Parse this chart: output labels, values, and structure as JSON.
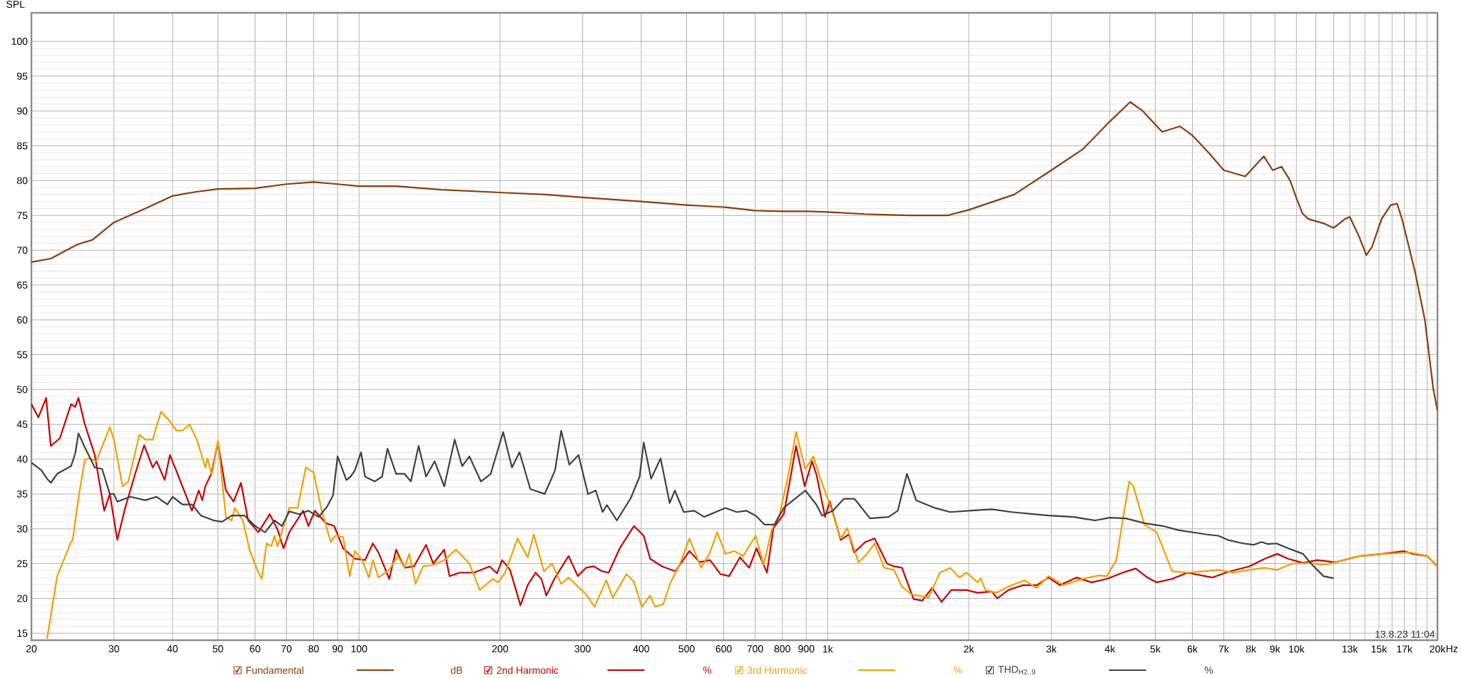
{
  "chart_data": {
    "type": "line",
    "ylabel": "SPL",
    "xlabel": "Hz",
    "annotations": [
      "13.8.23 11:04",
      "dB",
      "%",
      "%",
      "%"
    ],
    "xlim": [
      20,
      20000
    ],
    "ylim": [
      14,
      104.1
    ],
    "xticks": [
      20,
      30,
      40,
      50,
      60,
      70,
      80,
      90,
      100,
      200,
      300,
      400,
      500,
      600,
      700,
      800,
      900,
      {
        "value": 1000,
        "label": "1k"
      },
      {
        "value": 2000,
        "label": "2k"
      },
      {
        "value": 3000,
        "label": "3k"
      },
      {
        "value": 4000,
        "label": "4k"
      },
      {
        "value": 5000,
        "label": "5k"
      },
      {
        "value": 6000,
        "label": "6k"
      },
      {
        "value": 7000,
        "label": "7k"
      },
      {
        "value": 8000,
        "label": "8k"
      },
      {
        "value": 9000,
        "label": "9k"
      },
      {
        "value": 10000,
        "label": "10k"
      },
      {
        "value": 11000,
        "label": null
      },
      {
        "value": 12000,
        "label": null
      },
      {
        "value": 13000,
        "label": "13k"
      },
      {
        "value": 14000,
        "label": null
      },
      {
        "value": 15000,
        "label": "15k"
      },
      {
        "value": 16000,
        "label": null
      },
      {
        "value": 17000,
        "label": "17k"
      },
      {
        "value": 18000,
        "label": null
      },
      {
        "value": 19000,
        "label": null
      },
      {
        "value": 20000,
        "label": "20k"
      }
    ],
    "yticks": [
      15,
      20,
      25,
      30,
      35,
      40,
      45,
      50,
      55,
      60,
      65,
      70,
      75,
      80,
      85,
      90,
      95,
      100
    ],
    "grid": true,
    "log": "x",
    "legend": "bottom",
    "marker": "none",
    "line_style": "solid",
    "series": [
      {
        "name": "Fundamental",
        "color": "#8c3c0a",
        "x": [
          20,
          22,
          25,
          27,
          30,
          35,
          40,
          45,
          50,
          60,
          70,
          80,
          90,
          100,
          120,
          150,
          200,
          250,
          300,
          400,
          500,
          600,
          700,
          800,
          900,
          1000,
          1200,
          1500,
          1800,
          2000,
          2500,
          3000,
          3500,
          4000,
          4420,
          4700,
          5170,
          5640,
          6000,
          6500,
          7000,
          7780,
          8520,
          8900,
          9300,
          9700,
          10000,
          10300,
          10600,
          11500,
          12000,
          12700,
          13000,
          13600,
          14100,
          14500,
          15200,
          15900,
          16400,
          16800,
          17900,
          18800,
          19600,
          20000
        ],
        "values": [
          68.3,
          68.8,
          70.8,
          71.5,
          74,
          76,
          77.8,
          78.4,
          78.8,
          78.9,
          79.5,
          79.8,
          79.5,
          79.2,
          79.2,
          78.7,
          78.3,
          78,
          77.6,
          77,
          76.5,
          76.2,
          75.7,
          75.6,
          75.6,
          75.5,
          75.2,
          75,
          75,
          75.8,
          78,
          81.5,
          84.5,
          88.5,
          91.3,
          90,
          87,
          87.8,
          86.5,
          84,
          81.5,
          80.6,
          83.5,
          81.5,
          82,
          80,
          77.5,
          75.3,
          74.5,
          73.8,
          73.2,
          74.5,
          74.8,
          72,
          69.3,
          70.5,
          74.5,
          76.5,
          76.7,
          74.5,
          67,
          60,
          50,
          47
        ]
      },
      {
        "name": "2nd Harmonic",
        "color": "#c80000",
        "x": [
          20,
          20.7,
          21.5,
          22,
          23,
          24.3,
          24.8,
          25.2,
          26,
          27.3,
          28.6,
          29.4,
          30.5,
          31.7,
          33.3,
          34.8,
          36.3,
          37,
          38.5,
          39.5,
          41,
          42.5,
          44,
          45.5,
          46.3,
          47,
          48.4,
          50,
          52,
          54,
          56,
          58,
          61,
          64.5,
          67,
          69,
          71,
          76,
          78,
          80.5,
          85,
          88.5,
          92.5,
          98,
          103,
          107,
          110,
          116,
          120,
          125,
          131,
          139,
          144,
          152,
          156,
          164,
          176,
          190,
          197,
          202,
          210,
          221,
          229,
          238,
          245,
          251,
          261,
          280,
          293,
          305,
          317,
          330,
          341,
          360,
          386,
          405,
          418,
          443,
          473,
          507,
          533,
          561,
          590,
          616,
          650,
          680,
          705,
          742,
          766,
          806,
          832,
          856,
          893,
          926,
          947,
          987,
          1010,
          1066,
          1110,
          1139,
          1203,
          1260,
          1338,
          1385,
          1440,
          1525,
          1592,
          1670,
          1750,
          1835,
          1979,
          2090,
          2240,
          2300,
          2430,
          2610,
          2790,
          2960,
          3130,
          3400,
          3660,
          3940,
          4260,
          4540,
          4810,
          5035,
          5430,
          5858,
          6620,
          7140,
          7934,
          8560,
          9100,
          9600,
          10330,
          11080,
          12100,
          13700,
          15240,
          16940,
          17700,
          19000,
          20000
        ],
        "values": [
          47.9,
          46.0,
          48.8,
          41.9,
          43.0,
          47.9,
          47.5,
          48.8,
          45.0,
          40.6,
          32.6,
          35.0,
          28.4,
          33.0,
          37.9,
          42.0,
          38.8,
          39.7,
          37.0,
          40.6,
          37.9,
          35.2,
          32.6,
          35.5,
          34.1,
          36.1,
          37.9,
          42.4,
          35.5,
          33.9,
          36.6,
          31.2,
          29.5,
          32.1,
          29.9,
          27.2,
          29.5,
          32.6,
          30.4,
          32.6,
          30.8,
          30.4,
          27.2,
          25.7,
          25.5,
          27.9,
          26.6,
          22.8,
          27.0,
          24.4,
          24.6,
          27.7,
          25.0,
          27.0,
          23.2,
          23.7,
          23.7,
          24.6,
          23.6,
          25.5,
          24.1,
          19.0,
          21.9,
          23.7,
          22.8,
          20.4,
          22.8,
          26.1,
          23.2,
          24.4,
          24.6,
          23.9,
          23.7,
          27.2,
          30.4,
          29.0,
          25.7,
          24.6,
          23.9,
          26.8,
          25.2,
          25.5,
          23.5,
          23.2,
          25.9,
          24.4,
          27.2,
          23.7,
          30.1,
          32.1,
          37.2,
          41.9,
          36.1,
          39.7,
          37.7,
          31.7,
          33.9,
          28.4,
          29.2,
          26.6,
          28.1,
          28.6,
          25.0,
          24.6,
          24.4,
          19.9,
          19.7,
          21.5,
          19.5,
          21.2,
          21.2,
          20.8,
          21.0,
          20.0,
          21.2,
          21.9,
          21.9,
          23.0,
          21.9,
          23.0,
          22.3,
          22.8,
          23.7,
          24.3,
          23.0,
          22.3,
          22.8,
          23.7,
          23.0,
          23.8,
          24.6,
          25.7,
          26.4,
          25.7,
          25.1,
          25.5,
          25.2,
          26.1,
          26.4,
          26.8,
          26.4,
          26.1,
          24.6
        ]
      },
      {
        "name": "3rd Harmonic",
        "color": "#f0a000",
        "x": [
          21.6,
          22.7,
          24.3,
          24.5,
          25.2,
          26,
          26.6,
          27.5,
          29.4,
          30,
          31.3,
          32.2,
          34,
          35,
          36.3,
          37.8,
          39.2,
          40.8,
          42,
          43.5,
          45.2,
          47,
          47.5,
          48.5,
          50,
          52,
          53.5,
          54.3,
          56.5,
          58.5,
          61,
          62,
          63.5,
          65,
          66,
          67,
          71,
          74,
          77,
          80,
          83,
          87,
          89,
          92.5,
          95.5,
          98,
          101.5,
          105,
          107,
          110,
          116,
          121,
          125,
          128,
          132,
          137,
          144,
          152,
          161,
          167,
          172,
          181,
          193,
          198,
          205,
          218,
          229,
          236,
          248,
          258,
          270,
          280,
          293,
          305,
          318,
          337,
          348,
          372,
          386,
          401,
          418,
          428,
          446,
          463,
          484,
          507,
          537,
          561,
          581,
          605,
          632,
          660,
          702,
          730,
          760,
          790,
          825,
          856,
          896,
          932,
          965,
          1010,
          1066,
          1100,
          1163,
          1203,
          1260,
          1320,
          1385,
          1440,
          1509,
          1641,
          1736,
          1826,
          1908,
          1979,
          2090,
          2120,
          2170,
          2290,
          2430,
          2630,
          2790,
          2960,
          3190,
          3500,
          3790,
          3940,
          4130,
          4260,
          4400,
          4490,
          4740,
          5035,
          5430,
          5858,
          6317,
          6816,
          7354,
          7934,
          8560,
          9100,
          9800,
          10745,
          11420,
          12100,
          13700,
          15450,
          17450,
          19000,
          20000
        ],
        "values": [
          14.2,
          23.2,
          28.1,
          28.4,
          34.4,
          39.9,
          40.1,
          39.7,
          44.6,
          42.8,
          36.1,
          36.8,
          43.5,
          42.8,
          42.8,
          46.8,
          45.7,
          44.1,
          44.1,
          45.0,
          42.6,
          38.8,
          40.1,
          37.7,
          42.6,
          31.7,
          31.2,
          33.0,
          31.2,
          26.8,
          23.7,
          22.8,
          27.9,
          27.5,
          29.0,
          27.5,
          33.0,
          33.0,
          38.8,
          38.1,
          33.0,
          28.1,
          29.0,
          28.8,
          23.2,
          26.8,
          25.5,
          23.0,
          25.5,
          23.0,
          24.1,
          26.1,
          24.4,
          26.4,
          22.1,
          24.6,
          24.8,
          25.5,
          27.0,
          25.9,
          25.0,
          21.2,
          22.8,
          22.3,
          23.7,
          28.6,
          25.9,
          29.2,
          23.9,
          25.0,
          22.1,
          23.0,
          21.7,
          20.6,
          18.8,
          22.6,
          20.1,
          23.5,
          22.4,
          18.8,
          20.4,
          18.8,
          19.2,
          22.4,
          25.0,
          28.6,
          24.4,
          26.6,
          29.5,
          26.4,
          26.8,
          26.1,
          29.0,
          24.8,
          29.9,
          32.1,
          37.9,
          43.9,
          38.6,
          40.4,
          37.2,
          33.5,
          28.6,
          30.1,
          25.2,
          26.1,
          27.9,
          24.4,
          24.1,
          21.7,
          20.6,
          20.1,
          23.7,
          24.4,
          23.0,
          23.7,
          22.3,
          22.9,
          21.2,
          20.8,
          21.7,
          22.6,
          21.5,
          23.2,
          21.9,
          22.8,
          23.3,
          23.2,
          25.5,
          31.2,
          36.8,
          36.1,
          30.6,
          29.5,
          23.9,
          23.7,
          23.9,
          24.1,
          23.7,
          24.1,
          24.4,
          24.1,
          25.0,
          25.1,
          24.8,
          25.2,
          26.1,
          26.4,
          26.6,
          26.1,
          24.6
        ]
      },
      {
        "name": "THD$_{H2..9}$",
        "color": "#404040",
        "x": [
          20,
          21,
          21.6,
          22,
          22.7,
          24.3,
          24.8,
          25.2,
          26,
          27.3,
          28.3,
          29.4,
          30,
          30.5,
          32.5,
          35,
          37,
          39,
          40,
          42,
          44,
          46,
          49,
          51,
          53.5,
          57,
          60,
          63,
          66,
          68.5,
          71,
          74.5,
          78,
          82,
          85.5,
          88,
          90,
          94,
          96,
          98,
          101,
          103,
          108,
          112,
          115,
          120,
          125,
          129,
          134,
          139,
          145,
          152,
          160,
          166,
          172,
          182,
          191,
          203,
          212,
          220,
          232,
          249,
          262,
          270,
          281,
          294,
          308,
          320,
          331,
          338,
          355,
          380,
          397,
          405,
          420,
          440,
          460,
          472,
          493,
          519,
          545,
          605,
          640,
          670,
          702,
          733,
          770,
          806,
          844,
          896,
          945,
          973,
          1026,
          1082,
          1141,
          1231,
          1348,
          1411,
          1476,
          1544,
          1692,
          1826,
          2109,
          2240,
          2470,
          2960,
          3350,
          3718,
          4000,
          4326,
          4740,
          5190,
          5600,
          6420,
          6816,
          7140,
          7700,
          8100,
          8430,
          8700,
          9060,
          9600,
          10330,
          10745,
          11420,
          12000
        ],
        "values": [
          39.5,
          38.4,
          37.2,
          36.6,
          37.9,
          39.0,
          40.8,
          43.7,
          41.7,
          38.8,
          38.6,
          35.0,
          35.0,
          33.9,
          34.6,
          34.1,
          34.6,
          33.5,
          34.6,
          33.5,
          33.5,
          31.9,
          31.2,
          31.0,
          31.9,
          31.9,
          30.4,
          29.5,
          31.2,
          30.4,
          32.5,
          32.1,
          32.6,
          31.7,
          33.2,
          34.8,
          40.4,
          37.0,
          37.5,
          38.4,
          41.0,
          37.5,
          36.8,
          37.5,
          41.5,
          37.9,
          37.9,
          36.8,
          41.9,
          37.5,
          39.7,
          36.1,
          42.8,
          39.0,
          40.4,
          36.8,
          37.9,
          43.9,
          38.8,
          41.0,
          35.7,
          35.0,
          38.4,
          44.1,
          39.2,
          40.6,
          35.0,
          35.5,
          32.4,
          33.4,
          31.2,
          34.4,
          37.5,
          42.4,
          37.2,
          40.1,
          33.7,
          35.5,
          32.4,
          32.6,
          31.7,
          33.0,
          32.4,
          32.6,
          31.9,
          30.6,
          30.6,
          33.0,
          34.1,
          35.5,
          33.5,
          31.9,
          32.6,
          34.3,
          34.3,
          31.5,
          31.7,
          32.6,
          37.9,
          34.1,
          33.0,
          32.4,
          32.7,
          32.8,
          32.4,
          31.9,
          31.7,
          31.2,
          31.6,
          31.5,
          30.8,
          30.4,
          29.8,
          29.2,
          29.0,
          28.4,
          27.9,
          27.7,
          28.1,
          27.8,
          27.9,
          27.2,
          26.4,
          25.0,
          23.2,
          22.9
        ]
      }
    ]
  }
}
